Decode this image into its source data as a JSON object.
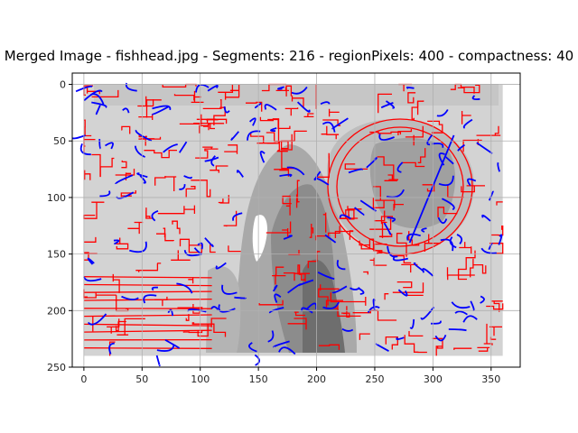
{
  "chart_data": {
    "type": "heatmap",
    "title": "Merged Image - fishhead.jpg - Segments: 216 - regionPixels: 400 - compactness: 40",
    "xlabel": "",
    "ylabel": "",
    "xlim": [
      -10,
      375
    ],
    "ylim": [
      250,
      -10
    ],
    "y_inverted": true,
    "grid": true,
    "image_extent": [
      0,
      360,
      0,
      240
    ],
    "x_ticks": [
      0,
      50,
      100,
      150,
      200,
      250,
      300,
      350
    ],
    "y_ticks": [
      0,
      50,
      100,
      150,
      200,
      250
    ],
    "colors": {
      "boundaries": "#ff0000",
      "streamlines": "#0000ff",
      "grid": "#b0b0b0"
    }
  }
}
